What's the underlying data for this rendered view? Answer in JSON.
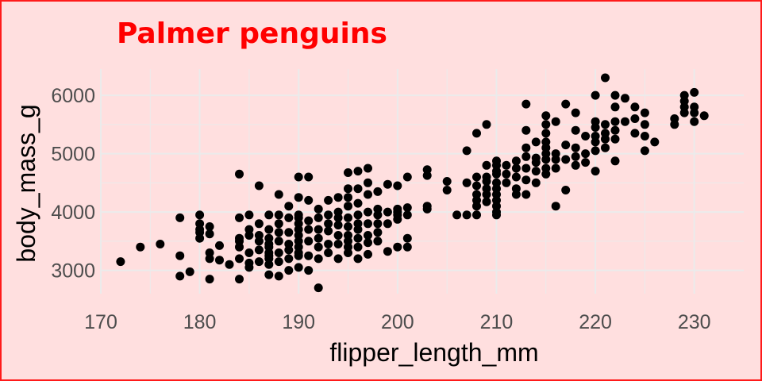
{
  "chart_data": {
    "type": "scatter",
    "title": "Palmer penguins",
    "xlabel": "flipper_length_mm",
    "ylabel": "body_mass_g",
    "xlim": [
      170,
      235
    ],
    "ylim": [
      2600,
      6450
    ],
    "x_ticks": [
      170,
      180,
      190,
      200,
      210,
      220,
      230
    ],
    "y_ticks": [
      3000,
      4000,
      5000,
      6000
    ],
    "grid": true,
    "legend": "none",
    "colors": {
      "background": "#ffdfdf",
      "border": "#ff1a1a",
      "title": "#ff0000",
      "points": "#000000",
      "grid": "#ebebeb",
      "tick_labels": "#4d4d4d"
    },
    "points": [
      [
        172,
        3150
      ],
      [
        174,
        3400
      ],
      [
        176,
        3450
      ],
      [
        178,
        3900
      ],
      [
        178,
        3250
      ],
      [
        178,
        2900
      ],
      [
        179,
        2975
      ],
      [
        180,
        3950
      ],
      [
        180,
        3800
      ],
      [
        180,
        3700
      ],
      [
        180,
        3650
      ],
      [
        180,
        3550
      ],
      [
        181,
        3750
      ],
      [
        181,
        3625
      ],
      [
        181,
        3300
      ],
      [
        181,
        3200
      ],
      [
        181,
        2850
      ],
      [
        182,
        3175
      ],
      [
        182,
        3425
      ],
      [
        183,
        3100
      ],
      [
        184,
        4650
      ],
      [
        184,
        3900
      ],
      [
        184,
        3550
      ],
      [
        184,
        3500
      ],
      [
        184,
        3400
      ],
      [
        184,
        3200
      ],
      [
        184,
        2850
      ],
      [
        185,
        3950
      ],
      [
        185,
        3700
      ],
      [
        185,
        3600
      ],
      [
        185,
        3300
      ],
      [
        185,
        3125
      ],
      [
        185,
        3050
      ],
      [
        186,
        4450
      ],
      [
        186,
        3800
      ],
      [
        186,
        3600
      ],
      [
        186,
        3500
      ],
      [
        186,
        3350
      ],
      [
        186,
        3150
      ],
      [
        187,
        3950
      ],
      [
        187,
        3700
      ],
      [
        187,
        3550
      ],
      [
        187,
        3450
      ],
      [
        187,
        3400
      ],
      [
        187,
        3300
      ],
      [
        187,
        3250
      ],
      [
        187,
        3200
      ],
      [
        187,
        3100
      ],
      [
        187,
        2925
      ],
      [
        188,
        4300
      ],
      [
        188,
        3950
      ],
      [
        188,
        3800
      ],
      [
        188,
        3650
      ],
      [
        188,
        3500
      ],
      [
        188,
        3300
      ],
      [
        188,
        3150
      ],
      [
        188,
        2900
      ],
      [
        189,
        4100
      ],
      [
        189,
        3900
      ],
      [
        189,
        3650
      ],
      [
        189,
        3450
      ],
      [
        189,
        3350
      ],
      [
        189,
        3200
      ],
      [
        189,
        3000
      ],
      [
        190,
        4600
      ],
      [
        190,
        4250
      ],
      [
        190,
        3950
      ],
      [
        190,
        3900
      ],
      [
        190,
        3800
      ],
      [
        190,
        3700
      ],
      [
        190,
        3600
      ],
      [
        190,
        3500
      ],
      [
        190,
        3400
      ],
      [
        190,
        3300
      ],
      [
        190,
        3250
      ],
      [
        190,
        3050
      ],
      [
        191,
        4600
      ],
      [
        191,
        4200
      ],
      [
        191,
        3850
      ],
      [
        191,
        3700
      ],
      [
        191,
        3500
      ],
      [
        191,
        3250
      ],
      [
        191,
        3000
      ],
      [
        192,
        4050
      ],
      [
        192,
        3900
      ],
      [
        192,
        3700
      ],
      [
        192,
        3550
      ],
      [
        192,
        3400
      ],
      [
        192,
        3200
      ],
      [
        192,
        2700
      ],
      [
        193,
        4200
      ],
      [
        193,
        3950
      ],
      [
        193,
        3800
      ],
      [
        193,
        3675
      ],
      [
        193,
        3450
      ],
      [
        193,
        3300
      ],
      [
        194,
        4250
      ],
      [
        194,
        4000
      ],
      [
        194,
        3900
      ],
      [
        194,
        3775
      ],
      [
        194,
        3600
      ],
      [
        194,
        3450
      ],
      [
        194,
        3200
      ],
      [
        195,
        4675
      ],
      [
        195,
        4400
      ],
      [
        195,
        4250
      ],
      [
        195,
        4100
      ],
      [
        195,
        3900
      ],
      [
        195,
        3750
      ],
      [
        195,
        3600
      ],
      [
        195,
        3500
      ],
      [
        195,
        3400
      ],
      [
        195,
        3300
      ],
      [
        196,
        4700
      ],
      [
        196,
        4400
      ],
      [
        196,
        4150
      ],
      [
        196,
        3950
      ],
      [
        196,
        3800
      ],
      [
        196,
        3700
      ],
      [
        196,
        3550
      ],
      [
        196,
        3400
      ],
      [
        196,
        3200
      ],
      [
        197,
        4750
      ],
      [
        197,
        4500
      ],
      [
        197,
        4300
      ],
      [
        197,
        4000
      ],
      [
        197,
        3800
      ],
      [
        197,
        3600
      ],
      [
        197,
        3475
      ],
      [
        197,
        3275
      ],
      [
        198,
        4350
      ],
      [
        198,
        4050
      ],
      [
        198,
        3950
      ],
      [
        198,
        3800
      ],
      [
        198,
        3650
      ],
      [
        198,
        3500
      ],
      [
        199,
        4475
      ],
      [
        199,
        4000
      ],
      [
        199,
        3800
      ],
      [
        199,
        3325
      ],
      [
        200,
        4450
      ],
      [
        200,
        4050
      ],
      [
        200,
        4000
      ],
      [
        200,
        3950
      ],
      [
        200,
        3875
      ],
      [
        200,
        3400
      ],
      [
        201,
        4600
      ],
      [
        201,
        4075
      ],
      [
        201,
        3950
      ],
      [
        201,
        3550
      ],
      [
        201,
        3400
      ],
      [
        203,
        4725
      ],
      [
        203,
        4625
      ],
      [
        203,
        4100
      ],
      [
        203,
        4050
      ],
      [
        205,
        4525
      ],
      [
        205,
        4375
      ],
      [
        206,
        3950
      ],
      [
        207,
        5050
      ],
      [
        207,
        4500
      ],
      [
        207,
        3950
      ],
      [
        208,
        5350
      ],
      [
        208,
        4600
      ],
      [
        208,
        4450
      ],
      [
        208,
        4300
      ],
      [
        208,
        4200
      ],
      [
        208,
        4100
      ],
      [
        208,
        3950
      ],
      [
        209,
        5500
      ],
      [
        209,
        4800
      ],
      [
        209,
        4600
      ],
      [
        209,
        4525
      ],
      [
        209,
        4400
      ],
      [
        209,
        4300
      ],
      [
        209,
        4175
      ],
      [
        210,
        4875
      ],
      [
        210,
        4800
      ],
      [
        210,
        4700
      ],
      [
        210,
        4650
      ],
      [
        210,
        4500
      ],
      [
        210,
        4400
      ],
      [
        210,
        4300
      ],
      [
        210,
        4200
      ],
      [
        210,
        4100
      ],
      [
        210,
        4000
      ],
      [
        210,
        3950
      ],
      [
        211,
        4800
      ],
      [
        211,
        4650
      ],
      [
        211,
        4500
      ],
      [
        212,
        4875
      ],
      [
        212,
        4750
      ],
      [
        212,
        4600
      ],
      [
        212,
        4400
      ],
      [
        212,
        4300
      ],
      [
        213,
        5850
      ],
      [
        213,
        5400
      ],
      [
        213,
        5100
      ],
      [
        213,
        4950
      ],
      [
        213,
        4750
      ],
      [
        213,
        4550
      ],
      [
        213,
        4300
      ],
      [
        214,
        5200
      ],
      [
        214,
        4925
      ],
      [
        214,
        4850
      ],
      [
        214,
        4700
      ],
      [
        214,
        4500
      ],
      [
        215,
        5650
      ],
      [
        215,
        5500
      ],
      [
        215,
        5350
      ],
      [
        215,
        5200
      ],
      [
        215,
        5100
      ],
      [
        215,
        5000
      ],
      [
        215,
        4900
      ],
      [
        215,
        4750
      ],
      [
        215,
        4650
      ],
      [
        216,
        5550
      ],
      [
        216,
        5000
      ],
      [
        216,
        4900
      ],
      [
        216,
        4750
      ],
      [
        216,
        4100
      ],
      [
        217,
        5850
      ],
      [
        217,
        5150
      ],
      [
        217,
        4900
      ],
      [
        217,
        4375
      ],
      [
        218,
        5700
      ],
      [
        218,
        5400
      ],
      [
        218,
        5100
      ],
      [
        218,
        4950
      ],
      [
        218,
        4800
      ],
      [
        219,
        5300
      ],
      [
        219,
        5000
      ],
      [
        219,
        4850
      ],
      [
        220,
        6000
      ],
      [
        220,
        5550
      ],
      [
        220,
        5450
      ],
      [
        220,
        5300
      ],
      [
        220,
        5200
      ],
      [
        220,
        5050
      ],
      [
        220,
        4700
      ],
      [
        221,
        6300
      ],
      [
        221,
        5500
      ],
      [
        221,
        5350
      ],
      [
        221,
        5250
      ],
      [
        221,
        5100
      ],
      [
        222,
        6000
      ],
      [
        222,
        5800
      ],
      [
        222,
        5550
      ],
      [
        222,
        5400
      ],
      [
        222,
        5250
      ],
      [
        222,
        4875
      ],
      [
        223,
        5950
      ],
      [
        223,
        5550
      ],
      [
        224,
        5800
      ],
      [
        224,
        5600
      ],
      [
        224,
        5350
      ],
      [
        225,
        5700
      ],
      [
        225,
        5500
      ],
      [
        225,
        5300
      ],
      [
        225,
        5050
      ],
      [
        226,
        5200
      ],
      [
        228,
        5600
      ],
      [
        228,
        5500
      ],
      [
        229,
        6000
      ],
      [
        229,
        5900
      ],
      [
        229,
        5800
      ],
      [
        229,
        5700
      ],
      [
        230,
        6050
      ],
      [
        230,
        5800
      ],
      [
        230,
        5700
      ],
      [
        230,
        5550
      ],
      [
        231,
        5650
      ]
    ]
  }
}
